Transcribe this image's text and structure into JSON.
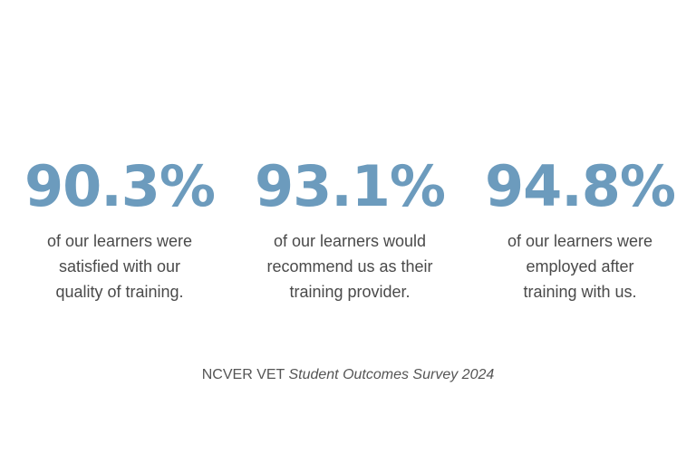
{
  "colors": {
    "accent": "#6c9bbd",
    "text": "#4a4a4a",
    "background": "#ffffff"
  },
  "stats": [
    {
      "value": "90.3%",
      "lines": [
        "of our learners were",
        "satisfied with our",
        "quality of training."
      ]
    },
    {
      "value": "93.1%",
      "lines": [
        "of our learners would",
        "recommend us as their",
        "training provider."
      ]
    },
    {
      "value": "94.8%",
      "lines": [
        "of our learners were",
        "employed after",
        "training with us."
      ]
    }
  ],
  "source": {
    "prefix": "NCVER VET",
    "title": "Student Outcomes Survey 2024"
  }
}
